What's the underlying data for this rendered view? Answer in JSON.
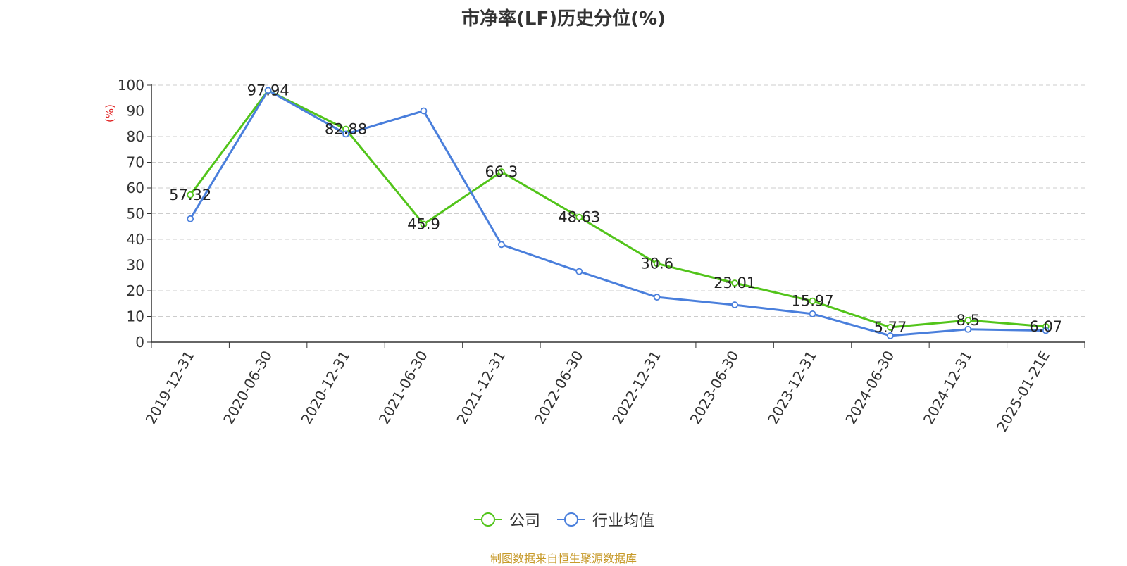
{
  "title": "市净率(LF)历史分位(%)",
  "y_unit": "(%)",
  "source": "制图数据来自恒生聚源数据库",
  "colors": {
    "company": "#52c41a",
    "industry": "#4a7fdc",
    "unit": "#e02020"
  },
  "chart_data": {
    "type": "line",
    "title": "市净率(LF)历史分位(%)",
    "ylabel": "(%)",
    "ylim": [
      0,
      100
    ],
    "yticks": [
      0,
      10,
      20,
      30,
      40,
      50,
      60,
      70,
      80,
      90,
      100
    ],
    "grid": true,
    "legend_position": "bottom",
    "categories": [
      "2019-12-31",
      "2020-06-30",
      "2020-12-31",
      "2021-06-30",
      "2021-12-31",
      "2022-06-30",
      "2022-12-31",
      "2023-06-30",
      "2023-12-31",
      "2024-06-30",
      "2024-12-31",
      "2025-01-21E"
    ],
    "series": [
      {
        "name": "公司",
        "values": [
          57.32,
          97.94,
          82.88,
          45.9,
          66.3,
          48.63,
          30.6,
          23.01,
          15.97,
          5.77,
          8.5,
          6.07
        ],
        "labels": [
          "57.32",
          "97.94",
          "82.88",
          "45.9",
          "66.3",
          "48.63",
          "30.6",
          "23.01",
          "15.97",
          "5.77",
          "8.5",
          "6.07"
        ]
      },
      {
        "name": "行业均值",
        "values": [
          48,
          98,
          81,
          90,
          38,
          27.5,
          17.5,
          14.5,
          11,
          2.5,
          5,
          4.5
        ]
      }
    ]
  }
}
